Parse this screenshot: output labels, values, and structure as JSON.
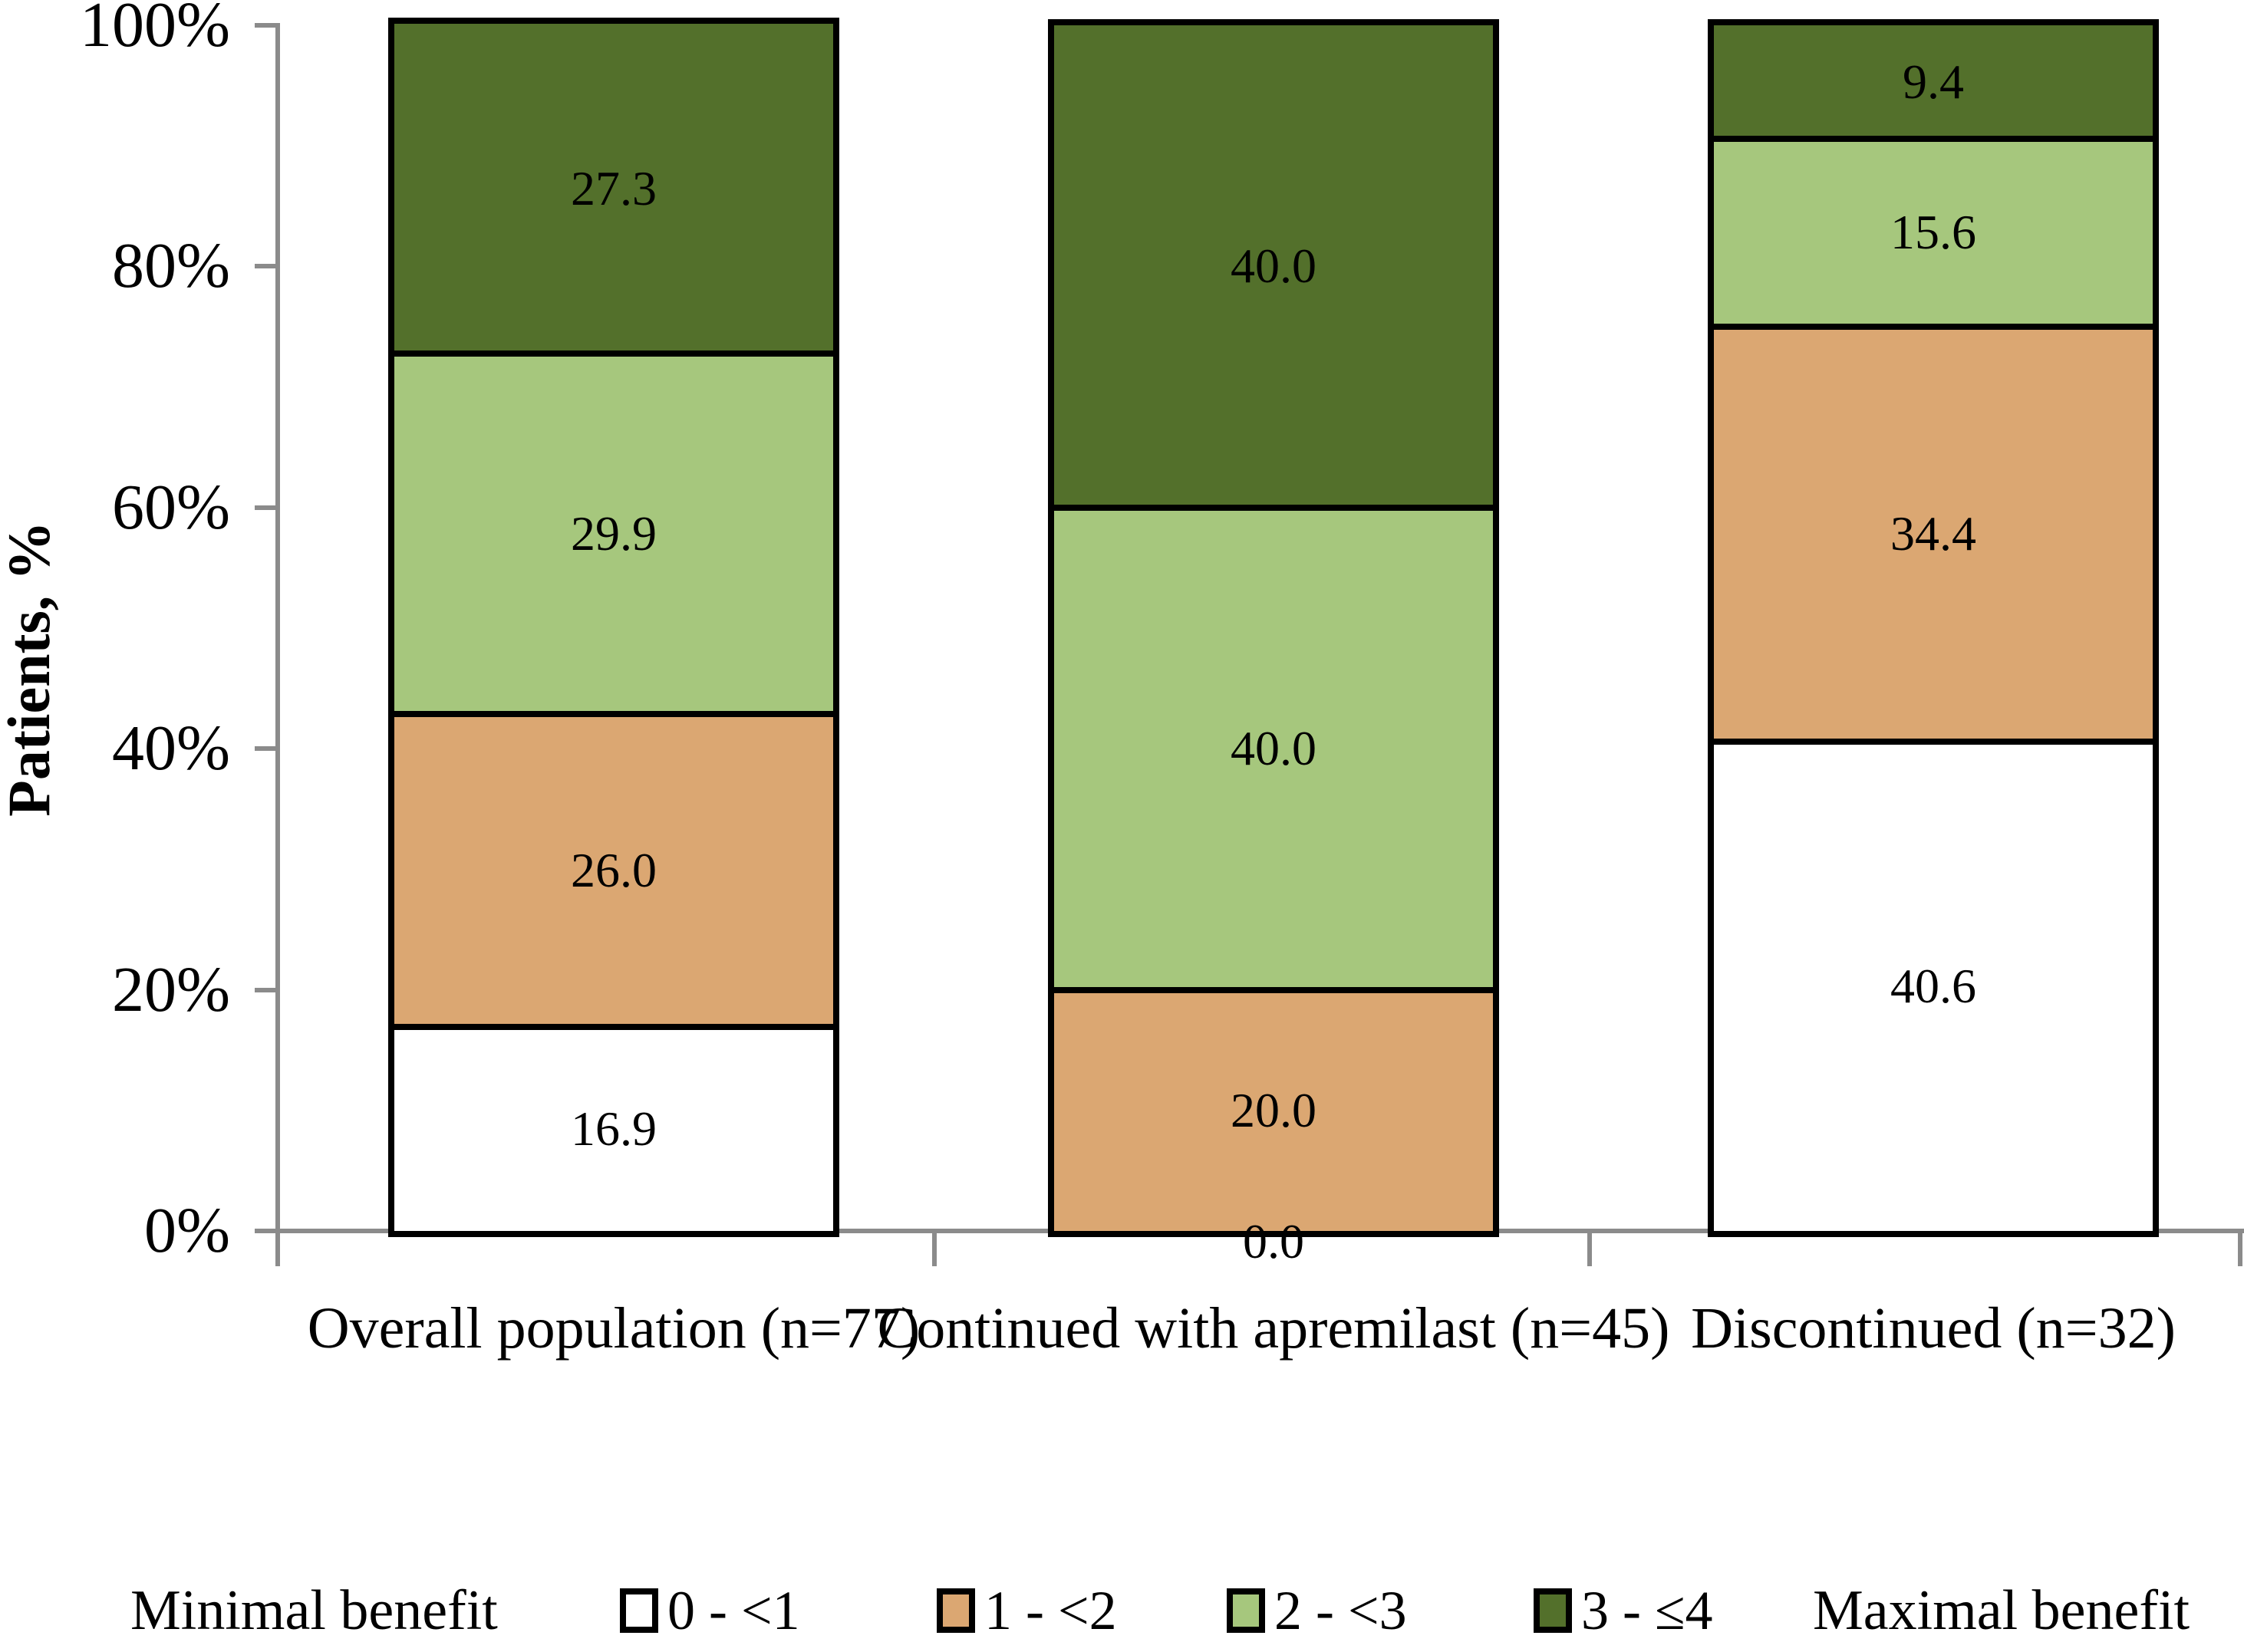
{
  "figure": {
    "background": "#ffffff",
    "axis_color": "#8b8b8b",
    "border_color": "#000000",
    "legend": {
      "min_label": "Minimal benefit",
      "max_label": "Maximal benefit"
    }
  },
  "chart_data": {
    "type": "bar",
    "stacked": true,
    "orientation": "vertical",
    "title": "",
    "xlabel": "",
    "ylabel": "Patients, %",
    "ylim": [
      0,
      100
    ],
    "yticks": [
      "0%",
      "20%",
      "40%",
      "60%",
      "80%",
      "100%"
    ],
    "grid": false,
    "legend_position": "bottom",
    "data_label_decimals": 1,
    "categories": [
      "Overall population (n=77)",
      "Continued with apremilast (n=45)",
      "Discontinued (n=32)"
    ],
    "series": [
      {
        "name": "0 - <1",
        "color": "#FFFFFF",
        "values": [
          16.9,
          0.0,
          40.6
        ]
      },
      {
        "name": "1 - <2",
        "color": "#DBA772",
        "values": [
          26.0,
          20.0,
          34.4
        ]
      },
      {
        "name": "2 - <3",
        "color": "#A6C77D",
        "values": [
          29.9,
          40.0,
          15.6
        ]
      },
      {
        "name": "3 - ≤4",
        "color": "#53702B",
        "values": [
          27.3,
          40.0,
          9.4
        ]
      }
    ]
  }
}
